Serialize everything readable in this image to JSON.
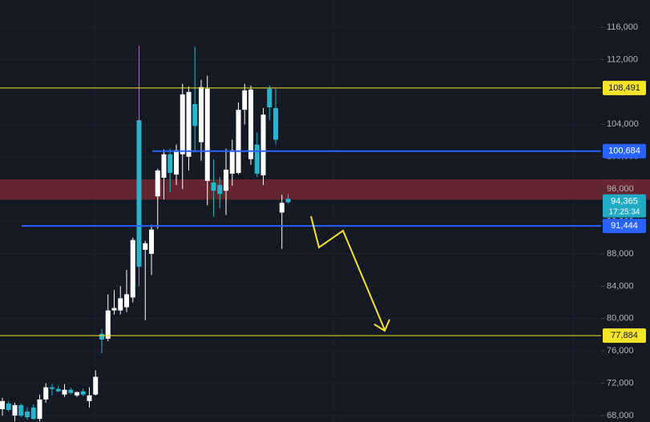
{
  "chart_data": {
    "type": "candlestick",
    "ylim": [
      67213,
      119365
    ],
    "yticks": [
      {
        "value": 68000,
        "label": "68,000"
      },
      {
        "value": 72000,
        "label": "72,000"
      },
      {
        "value": 76000,
        "label": "76,000"
      },
      {
        "value": 80000,
        "label": "80,000"
      },
      {
        "value": 84000,
        "label": "84,000"
      },
      {
        "value": 88000,
        "label": "88,000"
      },
      {
        "value": 92000,
        "label": "92,000"
      },
      {
        "value": 96000,
        "label": "96,000"
      },
      {
        "value": 100000,
        "label": "100,000"
      },
      {
        "value": 104000,
        "label": "104,000"
      },
      {
        "value": 108000,
        "label": "108,000"
      },
      {
        "value": 112000,
        "label": "112,000"
      },
      {
        "value": 116000,
        "label": "116,000"
      }
    ],
    "grid": true,
    "up_color": "#ffffff",
    "down_color": "#26b5cc",
    "open": [
      68800,
      69500,
      68000,
      69300,
      68500,
      69000,
      67600,
      70000,
      71500,
      71300,
      70600,
      71200,
      70500,
      71000,
      69800,
      70600,
      78100,
      77500,
      81000,
      81000,
      81400,
      82600,
      104500,
      88500,
      88000,
      95100,
      97400,
      100300,
      97800,
      100300,
      100000,
      106500,
      101800,
      97000,
      96800,
      96500,
      95800,
      97900,
      98000,
      105800,
      99700,
      101500,
      97700,
      108400,
      106000,
      93100,
      94800
    ],
    "high": [
      70200,
      69800,
      69600,
      69500,
      69000,
      69400,
      70600,
      72000,
      71900,
      71700,
      71900,
      71500,
      71000,
      71300,
      71500,
      73600,
      78700,
      83000,
      83500,
      84000,
      86000,
      90000,
      113700,
      89600,
      91600,
      98500,
      100900,
      101000,
      101500,
      109000,
      108700,
      113600,
      109500,
      110000,
      99700,
      97500,
      101000,
      102100,
      106700,
      109000,
      108800,
      103000,
      106000,
      108800,
      108400,
      95300,
      95400
    ],
    "low": [
      68000,
      68500,
      67300,
      67800,
      67500,
      67500,
      67300,
      69600,
      70500,
      70900,
      70300,
      70600,
      70300,
      70400,
      69000,
      70500,
      75700,
      77200,
      80500,
      80500,
      80800,
      82000,
      84000,
      79800,
      85400,
      91100,
      94700,
      95600,
      96500,
      96000,
      98300,
      100500,
      99500,
      94000,
      92600,
      93600,
      92800,
      96400,
      97800,
      104000,
      99000,
      97500,
      96500,
      104500,
      101500,
      88600,
      94200
    ],
    "close": [
      69800,
      68700,
      69300,
      68000,
      67800,
      67600,
      70000,
      71500,
      71300,
      71000,
      71200,
      70800,
      70900,
      70600,
      70500,
      72800,
      77400,
      81000,
      81300,
      82500,
      83000,
      89700,
      86400,
      89300,
      91000,
      98300,
      100300,
      98000,
      100800,
      107700,
      108000,
      103800,
      108600,
      108400,
      95800,
      95400,
      98400,
      100800,
      105800,
      108200,
      108300,
      97900,
      105200,
      106100,
      102100,
      94300,
      94365
    ],
    "levels": [
      {
        "value": 108491,
        "label": "108,491",
        "color": "#f5e52a"
      },
      {
        "value": 100684,
        "label": "100,684",
        "color": "#2962ff"
      },
      {
        "value": 91444,
        "label": "91,444",
        "color": "#2962ff"
      },
      {
        "value": 77884,
        "label": "77,884",
        "color": "#f5e52a"
      }
    ],
    "zone": {
      "from": 94700,
      "to": 97200,
      "color": "#6e2730"
    },
    "last_price": {
      "value": 94365,
      "label": "94,365",
      "countdown": "17:25:34",
      "color": "#22a9c3"
    }
  }
}
